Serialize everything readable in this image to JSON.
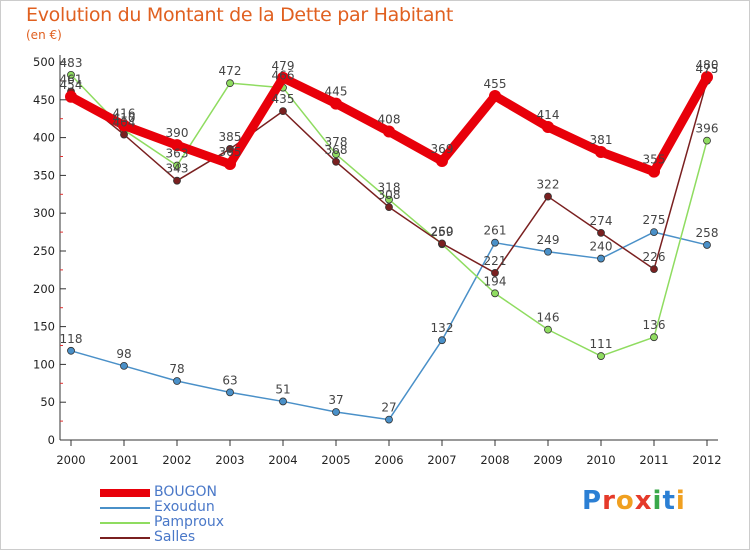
{
  "header": {
    "title": "Evolution du Montant de la Dette par Habitant",
    "subtitle": "(en €)"
  },
  "logo": {
    "text": "Proxiti",
    "letters": [
      {
        "char": "P",
        "color": "#2b7fd4"
      },
      {
        "char": "r",
        "color": "#e53a2a"
      },
      {
        "char": "o",
        "color": "#f0a020"
      },
      {
        "char": "x",
        "color": "#e53a2a"
      },
      {
        "char": "i",
        "color": "#3aa84a"
      },
      {
        "char": "t",
        "color": "#2b7fd4"
      },
      {
        "char": "i",
        "color": "#f0a020"
      }
    ]
  },
  "chart_data": {
    "type": "line",
    "title": "Evolution du Montant de la Dette par Habitant",
    "subtitle": "(en €)",
    "xlabel": "",
    "ylabel": "",
    "ylim": [
      0,
      500
    ],
    "yticks": [
      0,
      50,
      100,
      150,
      200,
      250,
      300,
      350,
      400,
      450,
      500
    ],
    "grid": false,
    "legend": "bottom-left",
    "categories": [
      "2000",
      "2001",
      "2002",
      "2003",
      "2004",
      "2005",
      "2006",
      "2007",
      "2008",
      "2009",
      "2010",
      "2011",
      "2012"
    ],
    "series": [
      {
        "name": "BOUGON",
        "color": "#e8000a",
        "values": [
          454,
          416,
          390,
          365,
          479,
          445,
          408,
          369,
          455,
          414,
          381,
          355,
          480
        ]
      },
      {
        "name": "Exoudun",
        "color": "#4a90c8",
        "values": [
          118,
          98,
          78,
          63,
          51,
          37,
          27,
          132,
          261,
          249,
          240,
          275,
          258
        ]
      },
      {
        "name": "Pamproux",
        "color": "#8fdc60",
        "values": [
          483,
          410,
          363,
          472,
          466,
          378,
          318,
          259,
          194,
          146,
          111,
          136,
          396
        ]
      },
      {
        "name": "Salles",
        "color": "#7a2020",
        "values": [
          461,
          404,
          343,
          385,
          435,
          368,
          308,
          260,
          221,
          322,
          274,
          226,
          475
        ]
      }
    ]
  }
}
